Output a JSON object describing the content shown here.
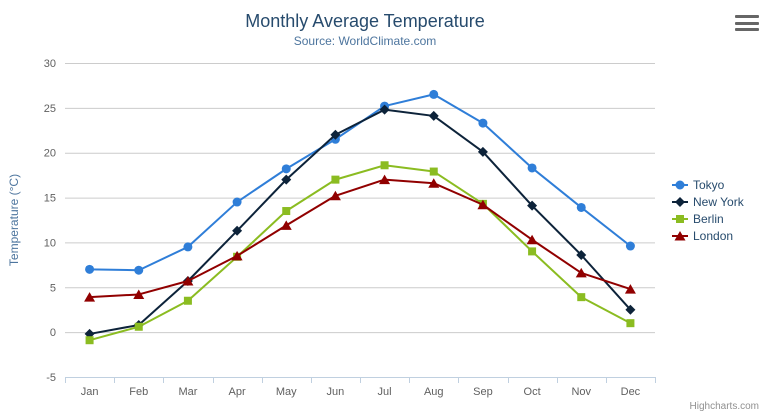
{
  "header": {
    "title": "Monthly Average Temperature",
    "subtitle": "Source: WorldClimate.com"
  },
  "credits_label": "Highcharts.com",
  "colors": {
    "title": "#274b6d",
    "subtitle": "#4d759e",
    "axis_labels": "#606060",
    "axis_title": "#4d759e",
    "grid": "#cccccc",
    "axis_line": "#c0d0e0",
    "legend_text": "#274b6d",
    "credits": "#909090",
    "menu_icon": "#666666"
  },
  "chart_data": {
    "type": "line",
    "title": "Monthly Average Temperature",
    "subtitle": "Source: WorldClimate.com",
    "xlabel": "",
    "ylabel": "Temperature (°C)",
    "ylim": [
      -5,
      30
    ],
    "ytick_step": 5,
    "grid": true,
    "legend_position": "right",
    "categories": [
      "Jan",
      "Feb",
      "Mar",
      "Apr",
      "May",
      "Jun",
      "Jul",
      "Aug",
      "Sep",
      "Oct",
      "Nov",
      "Dec"
    ],
    "series": [
      {
        "name": "Tokyo",
        "color": "#2f7ed8",
        "marker": "circle",
        "values": [
          7.0,
          6.9,
          9.5,
          14.5,
          18.2,
          21.5,
          25.2,
          26.5,
          23.3,
          18.3,
          13.9,
          9.6
        ]
      },
      {
        "name": "New York",
        "color": "#0d233a",
        "marker": "diamond",
        "values": [
          -0.2,
          0.8,
          5.7,
          11.3,
          17.0,
          22.0,
          24.8,
          24.1,
          20.1,
          14.1,
          8.6,
          2.5
        ]
      },
      {
        "name": "Berlin",
        "color": "#8bbc21",
        "marker": "square",
        "values": [
          -0.9,
          0.6,
          3.5,
          8.4,
          13.5,
          17.0,
          18.6,
          17.9,
          14.3,
          9.0,
          3.9,
          1.0
        ]
      },
      {
        "name": "London",
        "color": "#910000",
        "marker": "triangle",
        "values": [
          3.9,
          4.2,
          5.7,
          8.5,
          11.9,
          15.2,
          17.0,
          16.6,
          14.2,
          10.3,
          6.6,
          4.8
        ]
      }
    ]
  }
}
